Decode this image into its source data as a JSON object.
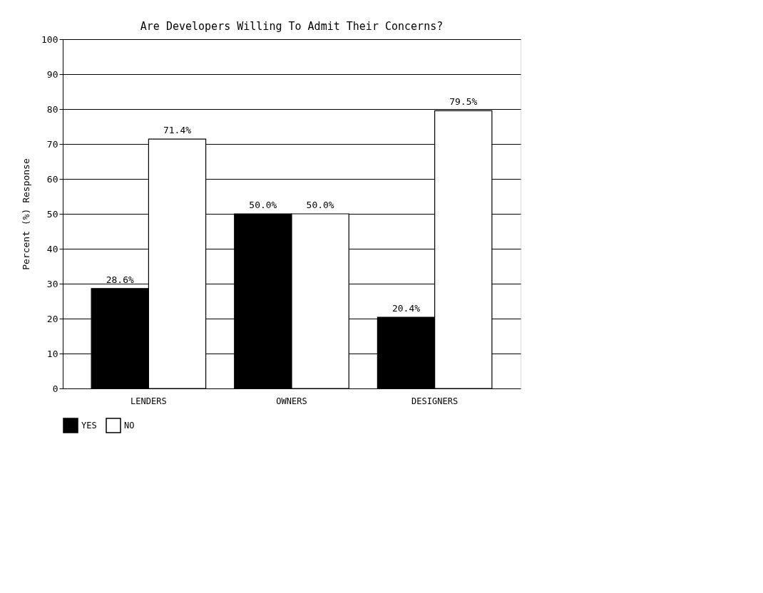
{
  "chart_data": {
    "type": "bar",
    "title": "Are Developers Willing To Admit Their Concerns?",
    "ylabel": "Percent (%) Response",
    "categories": [
      "LENDERS",
      "OWNERS",
      "DESIGNERS"
    ],
    "series": [
      {
        "name": "YES",
        "color": "#000000",
        "values": [
          28.6,
          50.0,
          20.4
        ],
        "value_labels": [
          "28.6%",
          "50.0%",
          "20.4%"
        ]
      },
      {
        "name": "NO",
        "color": "#ffffff",
        "values": [
          71.4,
          50.0,
          79.5
        ],
        "value_labels": [
          "71.4%",
          "50.0%",
          "79.5%"
        ]
      }
    ],
    "ylim": [
      0,
      100
    ],
    "yticks": [
      0,
      10,
      20,
      30,
      40,
      50,
      60,
      70,
      80,
      90,
      100
    ],
    "grid": "y",
    "legend": "bottom"
  }
}
